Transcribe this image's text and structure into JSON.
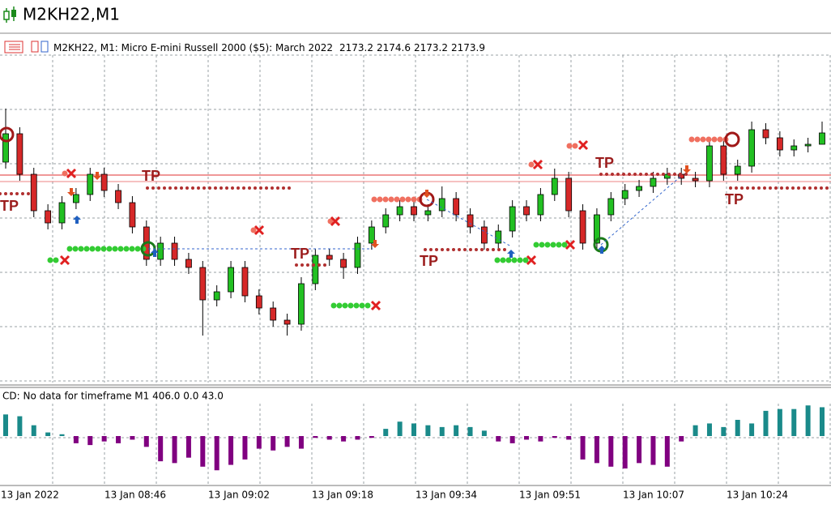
{
  "window_title": "M2KH22,M1",
  "chart_data": [
    {
      "type": "candlestick",
      "title": "M2KH22, M1:  Micro E-mini Russell 2000 ($5): March 2022",
      "open": [
        2172.1,
        2173.85,
        2171.35,
        2169.1,
        2168.35,
        2169.6,
        2170.1,
        2171.35,
        2170.35,
        2169.6,
        2168.1,
        2166.1,
        2167.1,
        2166.1,
        2165.6,
        2163.6,
        2164.1,
        2165.6,
        2163.85,
        2163.1,
        2162.35,
        2162.1,
        2164.6,
        2166.35,
        2166.1,
        2165.6,
        2167.1,
        2168.1,
        2168.85,
        2169.35,
        2168.85,
        2169.1,
        2169.85,
        2168.85,
        2168.1,
        2167.1,
        2167.85,
        2169.35,
        2168.85,
        2170.1,
        2171.1,
        2169.1,
        2167.1,
        2168.85,
        2169.85,
        2170.35,
        2170.6,
        2171.1,
        2171.35,
        2171.1,
        2170.95,
        2173.1,
        2171.35,
        2171.85,
        2174.1,
        2173.6,
        2172.85,
        2173.1,
        2173.2
      ],
      "high": [
        2175.4,
        2174.25,
        2171.75,
        2169.5,
        2170.0,
        2170.5,
        2171.75,
        2171.75,
        2170.75,
        2170.0,
        2168.5,
        2167.5,
        2167.5,
        2166.5,
        2166.0,
        2164.5,
        2166.0,
        2166.0,
        2164.25,
        2163.5,
        2162.75,
        2165.0,
        2166.75,
        2166.75,
        2166.5,
        2167.5,
        2168.5,
        2169.25,
        2169.75,
        2169.75,
        2169.5,
        2170.6,
        2170.25,
        2169.25,
        2168.5,
        2168.25,
        2169.75,
        2169.75,
        2170.5,
        2171.7,
        2171.5,
        2169.5,
        2169.25,
        2170.25,
        2170.75,
        2171.0,
        2171.5,
        2171.75,
        2171.75,
        2171.5,
        2173.5,
        2173.5,
        2172.25,
        2174.6,
        2174.5,
        2174.0,
        2173.5,
        2173.6,
        2174.6
      ],
      "low": [
        2171.7,
        2170.95,
        2168.7,
        2167.95,
        2167.95,
        2169.2,
        2169.7,
        2169.95,
        2169.2,
        2167.7,
        2165.7,
        2165.7,
        2165.7,
        2165.2,
        2161.4,
        2163.2,
        2163.7,
        2163.45,
        2162.7,
        2161.95,
        2161.4,
        2161.7,
        2164.2,
        2165.7,
        2164.9,
        2165.2,
        2166.7,
        2167.7,
        2168.45,
        2168.45,
        2168.45,
        2168.7,
        2168.45,
        2167.7,
        2166.7,
        2166.7,
        2167.45,
        2168.45,
        2168.45,
        2169.7,
        2168.7,
        2166.7,
        2166.7,
        2168.45,
        2169.45,
        2169.95,
        2170.2,
        2170.7,
        2170.7,
        2170.55,
        2170.55,
        2170.95,
        2170.95,
        2171.45,
        2173.2,
        2172.45,
        2172.45,
        2172.7,
        2173.2
      ],
      "close": [
        2173.85,
        2171.35,
        2169.1,
        2168.35,
        2169.6,
        2170.1,
        2171.35,
        2170.35,
        2169.6,
        2168.1,
        2166.1,
        2167.1,
        2166.1,
        2165.6,
        2163.6,
        2164.1,
        2165.6,
        2163.85,
        2163.1,
        2162.35,
        2162.1,
        2164.6,
        2166.35,
        2166.1,
        2165.6,
        2167.1,
        2168.1,
        2168.85,
        2169.35,
        2168.85,
        2169.1,
        2169.85,
        2168.85,
        2168.1,
        2167.1,
        2167.85,
        2169.35,
        2168.85,
        2170.1,
        2171.1,
        2169.1,
        2167.1,
        2168.85,
        2169.85,
        2170.35,
        2170.6,
        2171.1,
        2171.35,
        2171.1,
        2170.95,
        2173.1,
        2171.35,
        2171.85,
        2174.1,
        2173.6,
        2172.85,
        2173.1,
        2173.2,
        2173.9
      ],
      "up_color": "#22c022",
      "down_color": "#d62828",
      "ylim": [
        2158.5,
        2180
      ],
      "grid": true,
      "x_labels": [
        "13 Jan 2022",
        "13 Jan 08:46",
        "13 Jan 09:02",
        "13 Jan 09:18",
        "13 Jan 09:34",
        "13 Jan 09:51",
        "13 Jan 10:07",
        "13 Jan 10:24"
      ],
      "annotations": [
        "TP",
        "TP",
        "TP",
        "TP",
        "TP",
        "TP"
      ]
    },
    {
      "type": "bar",
      "title": "CD: No data for timeframe M1 406.0 0.0 43.0",
      "values": [
        120,
        110,
        60,
        20,
        10,
        -40,
        -50,
        -30,
        -40,
        -20,
        -60,
        -140,
        -150,
        -120,
        -170,
        -190,
        -160,
        -130,
        -70,
        -80,
        -60,
        -70,
        -10,
        -20,
        -30,
        -20,
        -10,
        40,
        80,
        70,
        60,
        50,
        60,
        50,
        30,
        -30,
        -40,
        -20,
        -30,
        -10,
        -20,
        -130,
        -150,
        -170,
        -180,
        -150,
        -160,
        -170,
        -30,
        60,
        70,
        50,
        90,
        70,
        140,
        150,
        150,
        170,
        160
      ],
      "positive_color": "#1a8a8a",
      "negative_color": "#800080",
      "ylim": [
        -270,
        270
      ]
    }
  ]
}
